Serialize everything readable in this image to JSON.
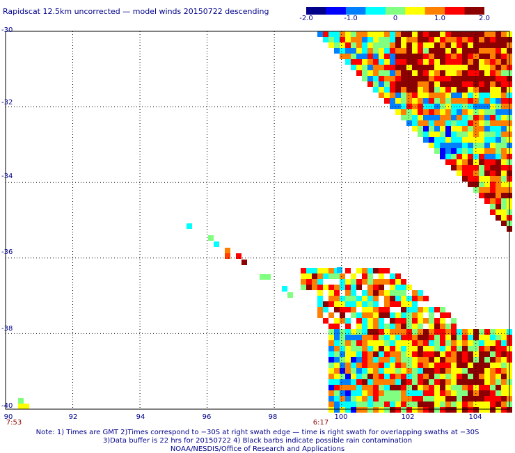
{
  "title": "Rapidscat 12.5km uncorrected — model winds 20150722 descending",
  "colorbar": {
    "ticks": [
      "-2.0",
      "-1.0",
      "0",
      "1.0",
      "2.0"
    ],
    "tick_values": [
      -2.0,
      -1.0,
      0,
      1.0,
      2.0
    ],
    "min": -2.0,
    "max": 2.0,
    "colors": [
      "#00008b",
      "#0000ff",
      "#0080ff",
      "#00ffff",
      "#80ff80",
      "#ffff00",
      "#ff8000",
      "#ff0000",
      "#8b0000"
    ]
  },
  "axes": {
    "lat_labels": [
      "-30",
      "-32",
      "-34",
      "-36",
      "-38",
      "-40"
    ],
    "lat_values": [
      -30,
      -32,
      -34,
      -36,
      -38,
      -40
    ],
    "lon_labels": [
      "90",
      "92",
      "94",
      "96",
      "98",
      "100",
      "102",
      "104"
    ],
    "lon_values": [
      90,
      92,
      94,
      96,
      98,
      100,
      102,
      104
    ],
    "lon_range": [
      90,
      105
    ],
    "lat_range": [
      -40,
      -30
    ],
    "grid": "dotted"
  },
  "times": [
    {
      "label": "7:53",
      "lon": 90.2
    },
    {
      "label": "6:17",
      "lon": 99.3
    }
  ],
  "notes": [
    "Note: 1) Times are GMT 2)Times correspond to −30S at right swath edge — time is right swath for overlapping swaths at −30S",
    "3)Data buffer is 22 hrs for 20150722 4) Black barbs indicate possible rain contamination",
    "NOAA/NESDIS/Office of Research and Applications"
  ]
}
